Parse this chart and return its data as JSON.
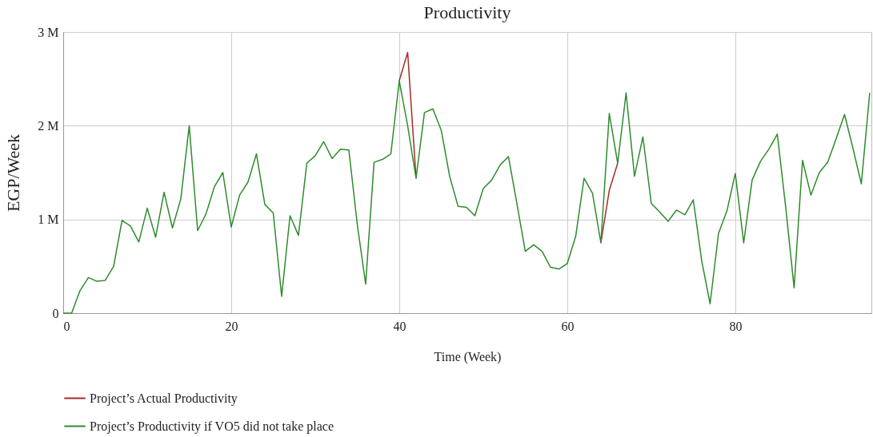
{
  "chart_data": {
    "type": "line",
    "title": "Productivity",
    "xlabel": "Time (Week)",
    "ylabel": "EGP/Week",
    "x": [
      0,
      1,
      2,
      3,
      4,
      5,
      6,
      7,
      8,
      9,
      10,
      11,
      12,
      13,
      14,
      15,
      16,
      17,
      18,
      19,
      20,
      21,
      22,
      23,
      24,
      25,
      26,
      27,
      28,
      29,
      30,
      31,
      32,
      33,
      34,
      35,
      36,
      37,
      38,
      39,
      40,
      41,
      42,
      43,
      44,
      45,
      46,
      47,
      48,
      49,
      50,
      51,
      52,
      53,
      54,
      55,
      56,
      57,
      58,
      59,
      60,
      61,
      62,
      63,
      64,
      65,
      66,
      67,
      68,
      69,
      70,
      71,
      72,
      73,
      74,
      75,
      76,
      77,
      78,
      79,
      80,
      81,
      82,
      83,
      84,
      85,
      86,
      87,
      88,
      89,
      90,
      91,
      92,
      93,
      94,
      95,
      96
    ],
    "series": [
      {
        "name": "Project’s Actual Productivity",
        "color": "#a52a2a",
        "values": [
          null,
          null,
          null,
          null,
          null,
          null,
          null,
          null,
          null,
          null,
          null,
          null,
          null,
          null,
          null,
          null,
          null,
          null,
          null,
          null,
          null,
          null,
          null,
          null,
          null,
          null,
          null,
          null,
          null,
          null,
          null,
          null,
          null,
          null,
          null,
          null,
          null,
          null,
          null,
          null,
          2480000,
          2780000,
          1440000,
          null,
          null,
          null,
          null,
          null,
          null,
          null,
          null,
          null,
          null,
          null,
          null,
          null,
          null,
          null,
          null,
          null,
          null,
          null,
          null,
          null,
          750000,
          1310000,
          1600000,
          null,
          null,
          null,
          null,
          null,
          null,
          null,
          null,
          null,
          null,
          null,
          null,
          null,
          null,
          null,
          null,
          null,
          null,
          null,
          null,
          null,
          null,
          null,
          null,
          null,
          null,
          null,
          null,
          null,
          null
        ]
      },
      {
        "name": "Project’s Productivity if VO5 did not take place",
        "color": "#2e8b2e",
        "values": [
          0,
          0,
          240000,
          380000,
          340000,
          350000,
          500000,
          990000,
          930000,
          760000,
          1120000,
          810000,
          1290000,
          910000,
          1220000,
          2000000,
          880000,
          1060000,
          1350000,
          1500000,
          920000,
          1260000,
          1400000,
          1700000,
          1160000,
          1070000,
          180000,
          1040000,
          830000,
          1600000,
          1680000,
          1830000,
          1650000,
          1750000,
          1740000,
          950000,
          310000,
          1610000,
          1640000,
          1700000,
          2480000,
          2000000,
          1440000,
          2140000,
          2180000,
          1950000,
          1460000,
          1140000,
          1130000,
          1040000,
          1330000,
          1420000,
          1580000,
          1670000,
          1170000,
          660000,
          730000,
          660000,
          490000,
          470000,
          530000,
          820000,
          1440000,
          1280000,
          750000,
          2130000,
          1600000,
          2350000,
          1460000,
          1880000,
          1170000,
          1080000,
          980000,
          1100000,
          1050000,
          1210000,
          560000,
          100000,
          850000,
          1090000,
          1490000,
          750000,
          1420000,
          1620000,
          1750000,
          1910000,
          1130000,
          270000,
          1630000,
          1260000,
          1500000,
          1610000,
          1860000,
          2120000,
          1760000,
          1380000,
          2350000
        ]
      }
    ],
    "xlim": [
      0,
      96.2
    ],
    "xticks": [
      0,
      20,
      40,
      60,
      80
    ],
    "ylim": [
      0,
      3000000
    ],
    "yticks": [
      {
        "value": 0,
        "label": "0"
      },
      {
        "value": 1000000,
        "label": "1 M"
      },
      {
        "value": 2000000,
        "label": "2 M"
      },
      {
        "value": 3000000,
        "label": "3 M"
      }
    ],
    "grid": true,
    "legend": "bottom left",
    "marker": "none",
    "line_style": "solid"
  }
}
